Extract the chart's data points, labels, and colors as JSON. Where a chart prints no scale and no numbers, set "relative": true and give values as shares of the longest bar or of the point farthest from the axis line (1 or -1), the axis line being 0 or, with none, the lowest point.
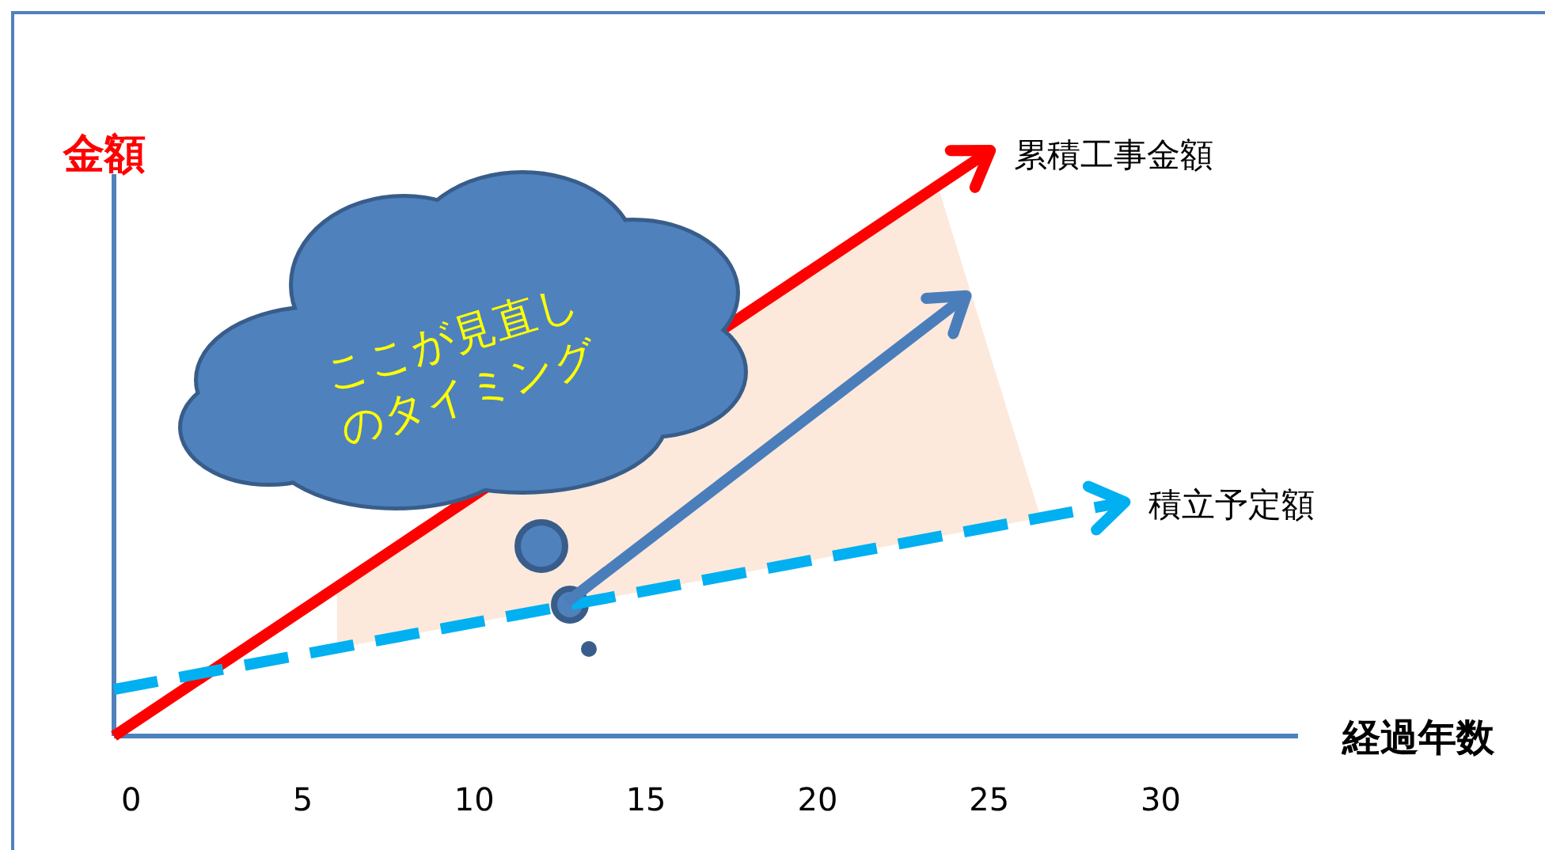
{
  "chart_data": {
    "type": "line",
    "relative": true,
    "xlabel": "経過年数",
    "ylabel": "金額",
    "xlim": [
      -0.5,
      34
    ],
    "xticks": [
      0,
      5,
      10,
      15,
      20,
      25,
      30
    ],
    "tick_labels": "x",
    "annotations": [
      "ここが見直し\nのタイミング"
    ],
    "series": [
      {
        "name": "累積工事金額",
        "color": "#ff0000",
        "x": [
          -0.5,
          24.9
        ],
        "values": [
          0,
          1
        ],
        "line_style": "solid"
      },
      {
        "name": "積立予定額",
        "color": "#00b0f0",
        "x": [
          -0.5,
          28.8
        ],
        "values": [
          0.08,
          0.4
        ],
        "line_style": "dashed"
      },
      {
        "color": "#4a7ebb",
        "x": [
          12.7,
          24.2
        ],
        "values": [
          0.23,
          0.75
        ],
        "line_style": "solid"
      }
    ]
  }
}
